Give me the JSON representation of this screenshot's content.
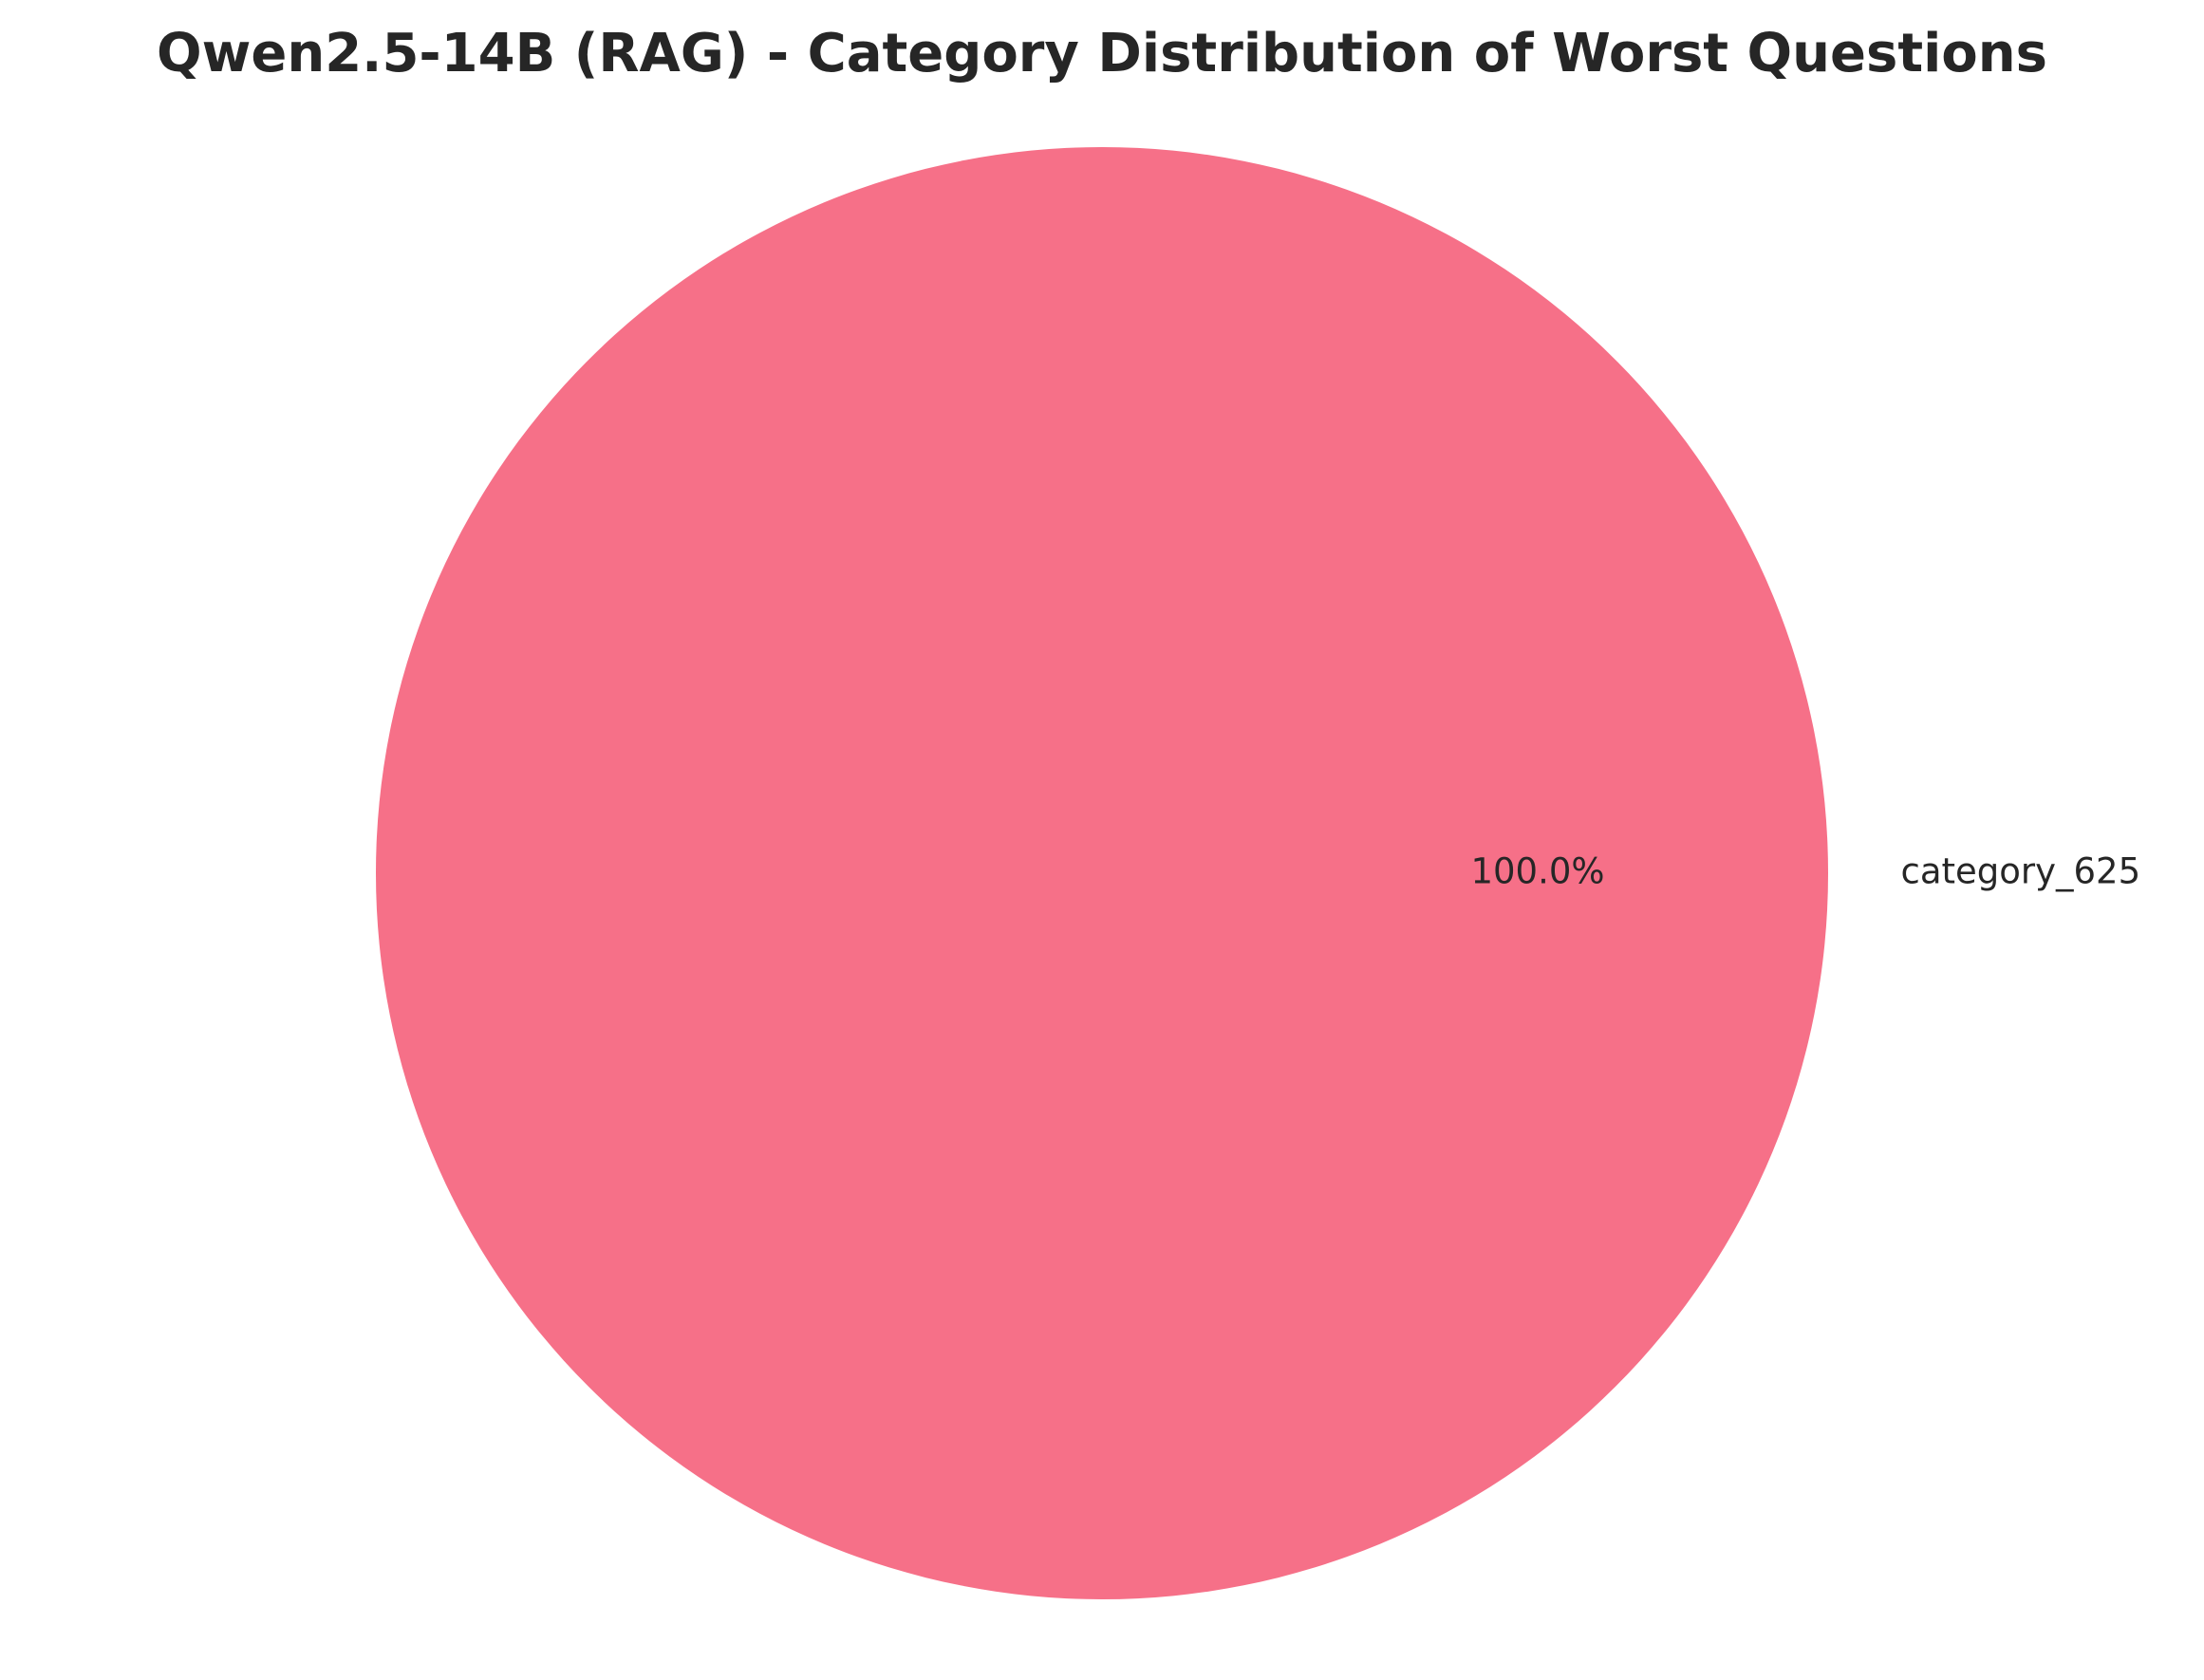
{
  "chart_data": {
    "type": "pie",
    "title": "Qwen2.5-14B (RAG) - Category Distribution of Worst Questions",
    "slices": [
      {
        "label": "category_625",
        "value": 100.0,
        "percent_label": "100.0%",
        "color": "#f67088"
      }
    ],
    "legend": "none"
  }
}
